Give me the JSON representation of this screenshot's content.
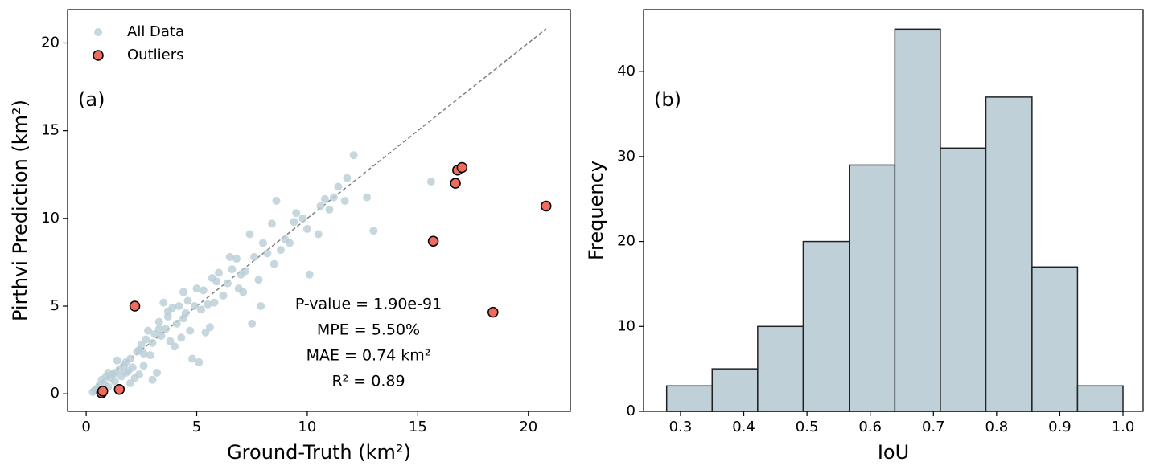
{
  "chart_data": [
    {
      "type": "scatter",
      "panel_label": "(a)",
      "xlabel": "Ground-Truth (km²)",
      "ylabel": "Pirthvi Prediction (km²)",
      "xlim": [
        -0.84,
        21.9
      ],
      "ylim": [
        -1.0,
        21.9
      ],
      "xticks": [
        0,
        5,
        10,
        15,
        20
      ],
      "yticks": [
        0,
        5,
        10,
        15,
        20
      ],
      "legend": "upper left",
      "annotations": [
        "P-value = 1.90e-91",
        "MPE = 5.50%",
        "MAE = 0.74 km²",
        "R² = 0.89"
      ],
      "reference_line": {
        "x": [
          0.2,
          20.8
        ],
        "y": [
          0.2,
          20.8
        ],
        "color": "#808080",
        "style": "dashed"
      },
      "series": [
        {
          "name": "All Data",
          "color": "#b9cdd6",
          "x": [
            0.3,
            0.4,
            0.5,
            0.6,
            0.7,
            0.8,
            0.9,
            1.0,
            1.1,
            1.2,
            1.3,
            1.4,
            1.5,
            1.6,
            1.7,
            1.8,
            1.9,
            2.0,
            2.1,
            2.2,
            2.3,
            2.4,
            2.5,
            2.6,
            2.7,
            2.8,
            2.9,
            3.0,
            3.0,
            3.1,
            3.2,
            3.3,
            3.4,
            3.5,
            3.6,
            3.7,
            3.8,
            3.9,
            4.0,
            4.1,
            4.2,
            4.3,
            4.4,
            4.5,
            4.6,
            4.7,
            4.8,
            4.9,
            5.0,
            5.1,
            5.2,
            5.3,
            5.4,
            5.5,
            5.6,
            5.7,
            5.8,
            5.9,
            6.0,
            6.2,
            6.4,
            6.5,
            6.6,
            6.8,
            6.9,
            7.0,
            7.1,
            7.2,
            7.4,
            7.5,
            7.6,
            7.8,
            7.9,
            8.0,
            8.2,
            8.4,
            8.5,
            8.6,
            8.8,
            9.0,
            9.2,
            9.4,
            9.5,
            9.8,
            10.0,
            10.1,
            10.5,
            10.6,
            10.8,
            11.0,
            11.2,
            11.4,
            11.7,
            11.8,
            12.1,
            12.7,
            13.0,
            15.6,
            0.5,
            1.0,
            1.8,
            2.6,
            3.3,
            4.4,
            3.7,
            2.4,
            1.3,
            2.0
          ],
          "y": [
            0.1,
            0.2,
            0.3,
            0.5,
            0.8,
            0.6,
            1.0,
            1.2,
            0.9,
            1.1,
            0.7,
            1.9,
            1.4,
            1.0,
            1.6,
            1.8,
            1.3,
            2.0,
            1.5,
            0.9,
            2.4,
            1.1,
            2.8,
            1.6,
            3.1,
            3.6,
            2.2,
            0.8,
            2.9,
            3.4,
            1.2,
            4.1,
            3.3,
            5.2,
            3.7,
            4.4,
            3.0,
            4.9,
            2.7,
            4.0,
            5.0,
            3.2,
            5.8,
            4.6,
            5.3,
            3.6,
            2.0,
            5.0,
            6.0,
            1.8,
            4.8,
            5.9,
            3.5,
            5.1,
            3.8,
            6.6,
            5.2,
            6.4,
            6.9,
            5.6,
            6.3,
            7.8,
            7.1,
            7.7,
            6.0,
            6.8,
            5.8,
            7.0,
            9.1,
            4.0,
            7.8,
            6.5,
            5.0,
            8.6,
            8.0,
            9.7,
            7.4,
            11.0,
            8.2,
            8.8,
            8.6,
            9.8,
            10.3,
            10.0,
            9.4,
            6.8,
            9.1,
            10.7,
            11.1,
            10.5,
            11.2,
            11.8,
            11.0,
            12.3,
            13.6,
            11.2,
            9.3,
            12.1,
            0.2,
            0.4,
            1.2,
            2.3,
            3.7,
            4.3,
            4.7,
            2.5,
            1.2,
            0.6
          ]
        },
        {
          "name": "Outliers",
          "color": "#ee6b5e",
          "edgecolor": "#000000",
          "x": [
            0.7,
            0.75,
            1.5,
            2.2,
            15.7,
            16.7,
            16.8,
            17.0,
            18.4,
            20.8
          ],
          "y": [
            0.05,
            0.15,
            0.25,
            5.0,
            8.7,
            12.0,
            12.75,
            12.9,
            4.65,
            10.7
          ]
        }
      ]
    },
    {
      "type": "histogram",
      "panel_label": "(b)",
      "xlabel": "IoU",
      "ylabel": "Frequency",
      "xlim": [
        0.2415,
        1.0318
      ],
      "ylim": [
        0,
        47.3
      ],
      "xticks": [
        0.3,
        0.4,
        0.5,
        0.6,
        0.7,
        0.8,
        0.9,
        {
          "value": 1,
          "label": "1.0"
        }
      ],
      "yticks": [
        0,
        10,
        20,
        30,
        40
      ],
      "color": "#bfd0d8",
      "edgecolor": "#222222",
      "bins": [
        0.278,
        0.35,
        0.422,
        0.494,
        0.567,
        0.639,
        0.711,
        0.783,
        0.856,
        0.928,
        1.0
      ],
      "counts": [
        3,
        5,
        10,
        20,
        29,
        45,
        31,
        37,
        17,
        3
      ]
    }
  ]
}
